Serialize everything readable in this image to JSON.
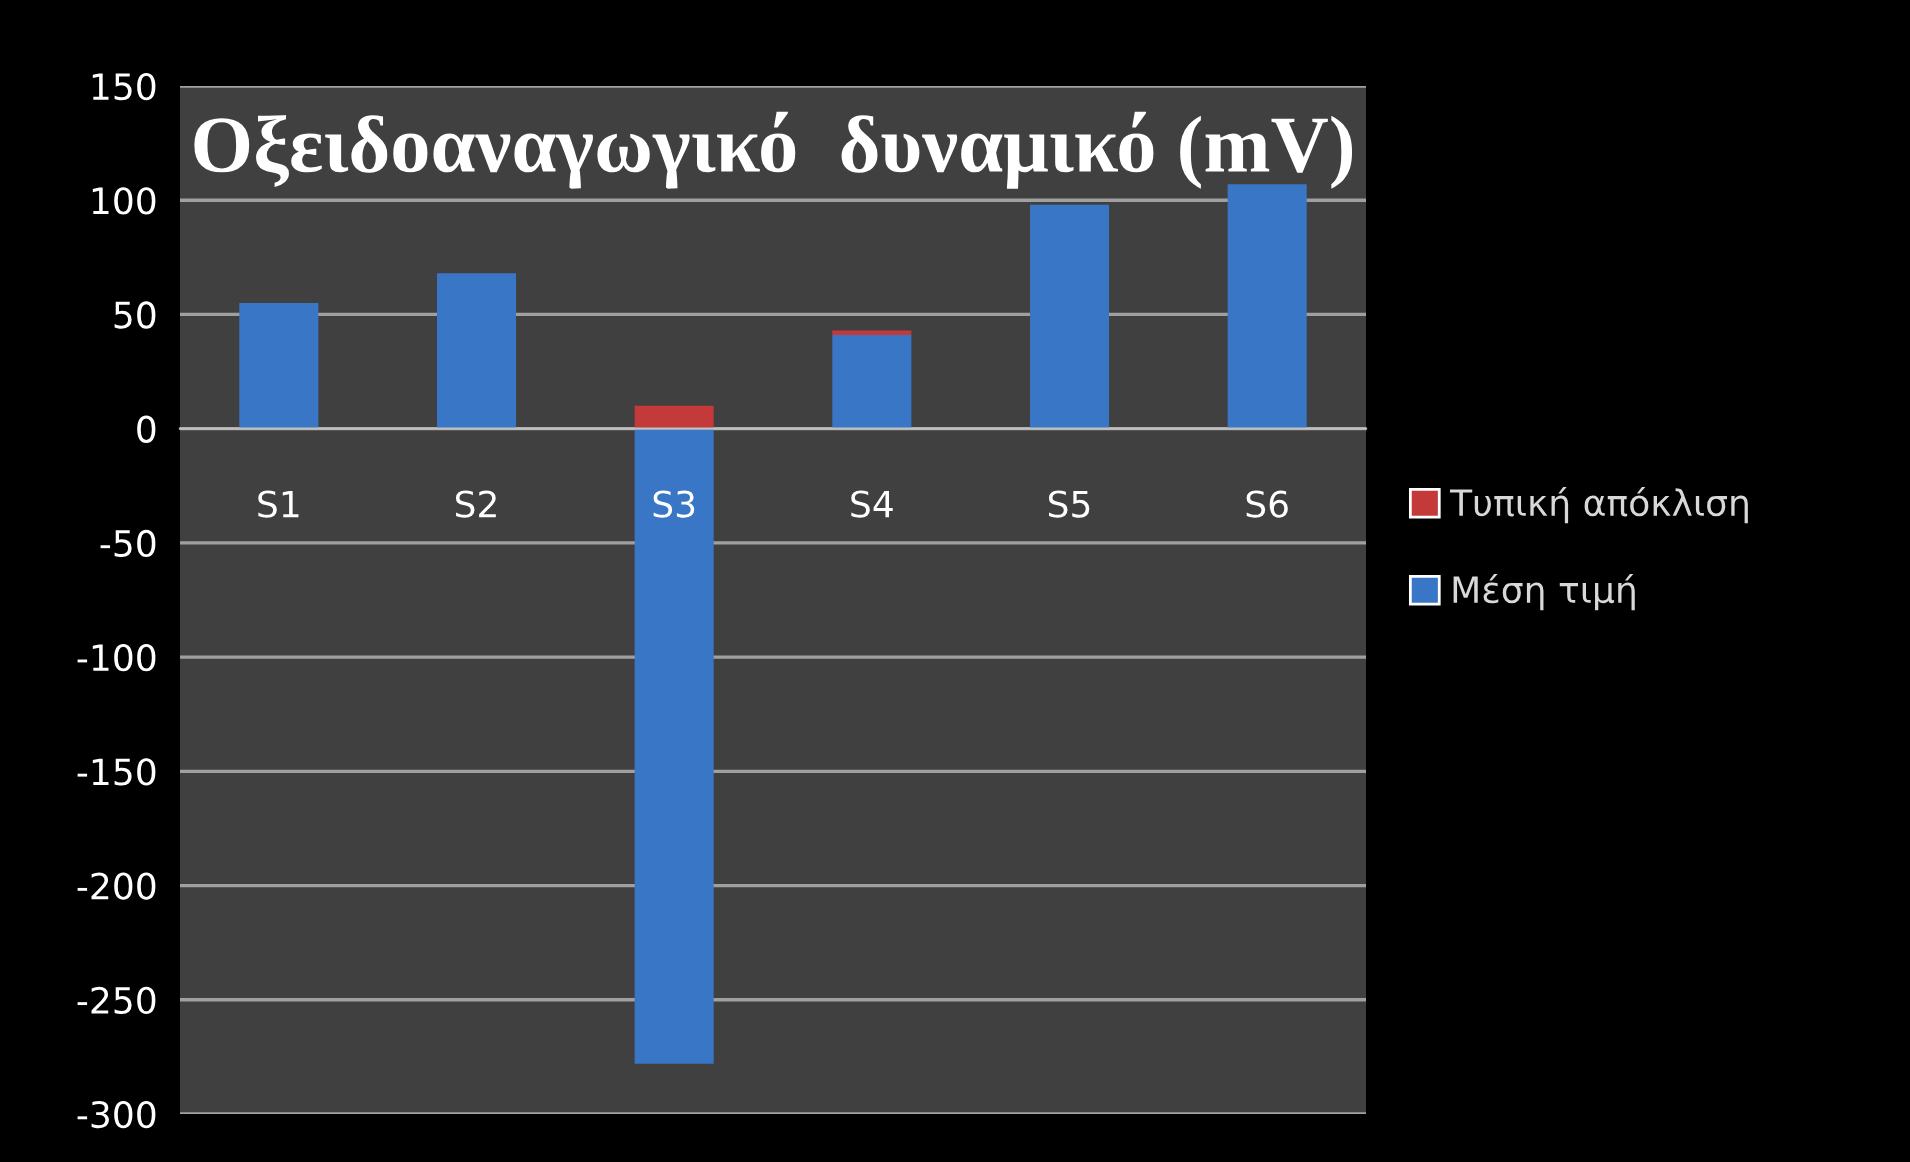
{
  "chart_data": {
    "type": "bar",
    "title": "Οξειδοαναγωγικό  δυναμικό (mV)",
    "categories": [
      "S1",
      "S2",
      "S3",
      "S4",
      "S5",
      "S6"
    ],
    "stacked": true,
    "series": [
      {
        "name": "Μέση τιμή",
        "color": "#3a76c6",
        "values": [
          55,
          68,
          -278,
          41,
          98,
          107
        ]
      },
      {
        "name": "Τυπική απόκλιση",
        "color": "#c43a3a",
        "values": [
          null,
          null,
          10,
          2,
          null,
          null
        ]
      }
    ],
    "ylim": [
      -300,
      150
    ],
    "yticks": [
      -300,
      -250,
      -200,
      -150,
      -100,
      -50,
      0,
      50,
      100,
      150
    ],
    "grid": "y",
    "legend": "right"
  }
}
